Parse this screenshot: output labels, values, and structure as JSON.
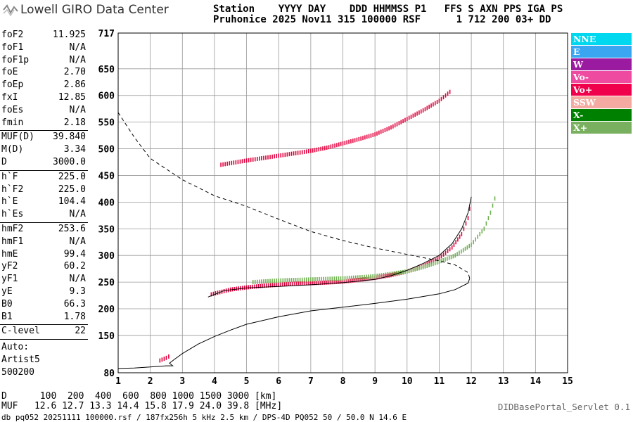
{
  "header": {
    "brand": "Lowell GIRO Data Center",
    "station_line1": "Station    YYYY DAY    DDD HHMMSS P1   FFS S AXN PPS IGA PS",
    "station_line2": "Pruhonice 2025 Nov11 315 100000 RSF      1 712 200 03+ DD"
  },
  "params": [
    {
      "name": "foF2",
      "value": "11.925"
    },
    {
      "name": "foF1",
      "value": "N/A"
    },
    {
      "name": "foF1p",
      "value": "N/A"
    },
    {
      "name": "foE",
      "value": "2.70"
    },
    {
      "name": "foEp",
      "value": "2.86"
    },
    {
      "name": "fxI",
      "value": "12.85"
    },
    {
      "name": "foEs",
      "value": "N/A"
    },
    {
      "name": "fmin",
      "value": "2.18"
    },
    {
      "name": "MUF(D)",
      "value": "39.840"
    },
    {
      "name": "M(D)",
      "value": "3.34"
    },
    {
      "name": "D",
      "value": "3000.0"
    },
    {
      "name": "h`F",
      "value": "225.0"
    },
    {
      "name": "h`F2",
      "value": "225.0"
    },
    {
      "name": "h`E",
      "value": "104.4"
    },
    {
      "name": "h`Es",
      "value": "N/A"
    },
    {
      "name": "hmF2",
      "value": "253.6"
    },
    {
      "name": "hmF1",
      "value": "N/A"
    },
    {
      "name": "hmE",
      "value": "99.4"
    },
    {
      "name": "yF2",
      "value": "60.2"
    },
    {
      "name": "yF1",
      "value": "N/A"
    },
    {
      "name": "yE",
      "value": "9.3"
    },
    {
      "name": "B0",
      "value": "66.3"
    },
    {
      "name": "B1",
      "value": "1.78"
    },
    {
      "name": "C-level",
      "value": "22"
    }
  ],
  "auto": {
    "line1": "Auto:",
    "line2": "Artist5",
    "line3": "500200"
  },
  "legend": [
    {
      "label": "NNE",
      "color": "#00d8f0"
    },
    {
      "label": "E",
      "color": "#3aa6f2"
    },
    {
      "label": "W",
      "color": "#9a1aa0"
    },
    {
      "label": "Vo-",
      "color": "#ee4aa0"
    },
    {
      "label": "Vo+",
      "color": "#f0004c"
    },
    {
      "label": "SSW",
      "color": "#f4aaa0"
    },
    {
      "label": "X-",
      "color": "#008000"
    },
    {
      "label": "X+",
      "color": "#78b060"
    }
  ],
  "bottom": {
    "d_line": "D      100  200  400  600  800 1000 1500 3000 [km]",
    "muf_line": "MUF   12.6 12.7 13.3 14.4 15.8 17.9 24.0 39.8 [MHz]"
  },
  "footer": "db pq052 20251111 100000.rsf / 187fx256h 5 kHz 2.5 km / DPS-4D PQ052 50 / 50.0 N 14.6 E",
  "servlet": "DIDBasePortal_Servlet 0.1",
  "chart_data": {
    "type": "scatter",
    "xlim": [
      1,
      15
    ],
    "ylim": [
      80,
      717
    ],
    "x_ticks": [
      1,
      2,
      3,
      4,
      5,
      6,
      7,
      8,
      9,
      10,
      11,
      12,
      13,
      14,
      15
    ],
    "y_ticks": [
      80,
      150,
      200,
      250,
      300,
      350,
      400,
      450,
      500,
      550,
      600,
      650,
      717
    ],
    "grid": true,
    "series": [
      {
        "name": "O-trace (Vo+)",
        "color": "#e0003c",
        "points": [
          [
            3.9,
            227
          ],
          [
            4.5,
            236
          ],
          [
            5,
            240
          ],
          [
            5.5,
            243
          ],
          [
            6,
            245
          ],
          [
            6.5,
            247
          ],
          [
            7,
            248
          ],
          [
            7.5,
            249
          ],
          [
            8,
            251
          ],
          [
            8.5,
            254
          ],
          [
            9,
            258
          ],
          [
            9.5,
            263
          ],
          [
            10,
            270
          ],
          [
            10.5,
            280
          ],
          [
            11,
            295
          ],
          [
            11.4,
            315
          ],
          [
            11.7,
            340
          ],
          [
            11.9,
            370
          ],
          [
            12,
            405
          ]
        ]
      },
      {
        "name": "X-trace (X+)",
        "color": "#70b050",
        "points": [
          [
            5.2,
            250
          ],
          [
            6,
            253
          ],
          [
            7,
            255
          ],
          [
            8,
            257
          ],
          [
            9,
            261
          ],
          [
            10,
            270
          ],
          [
            10.5,
            278
          ],
          [
            11,
            288
          ],
          [
            11.5,
            300
          ],
          [
            12,
            320
          ],
          [
            12.4,
            350
          ],
          [
            12.6,
            380
          ],
          [
            12.8,
            420
          ]
        ]
      },
      {
        "name": "Es/multihop (Vo+)",
        "color": "#e0003c",
        "points": [
          [
            4.2,
            470
          ],
          [
            5,
            478
          ],
          [
            6,
            487
          ],
          [
            7,
            496
          ],
          [
            7.5,
            502
          ],
          [
            8,
            510
          ],
          [
            8.5,
            518
          ],
          [
            9,
            527
          ],
          [
            9.5,
            540
          ],
          [
            10,
            556
          ],
          [
            10.5,
            572
          ],
          [
            11,
            590
          ],
          [
            11.4,
            610
          ]
        ]
      },
      {
        "name": "Low trace (Vo+)",
        "color": "#e0003c",
        "points": [
          [
            2.3,
            103
          ],
          [
            2.5,
            108
          ],
          [
            2.65,
            113
          ]
        ]
      }
    ],
    "model_curves": [
      {
        "name": "O-trace fit",
        "style": "solid",
        "points": [
          [
            3.8,
            222
          ],
          [
            4.3,
            234
          ],
          [
            5,
            239
          ],
          [
            6,
            242
          ],
          [
            7,
            245
          ],
          [
            8,
            249
          ],
          [
            9,
            255
          ],
          [
            9.5,
            262
          ],
          [
            10,
            272
          ],
          [
            10.5,
            285
          ],
          [
            11,
            300
          ],
          [
            11.4,
            322
          ],
          [
            11.7,
            350
          ],
          [
            11.9,
            380
          ],
          [
            12,
            410
          ]
        ]
      },
      {
        "name": "Profile",
        "style": "solid",
        "points": [
          [
            1,
            88
          ],
          [
            1.5,
            89
          ],
          [
            2,
            91
          ],
          [
            2.5,
            93
          ],
          [
            2.7,
            93
          ],
          [
            2.6,
            98
          ],
          [
            2.75,
            105
          ],
          [
            3,
            116
          ],
          [
            3.5,
            134
          ],
          [
            4,
            148
          ],
          [
            4.5,
            160
          ],
          [
            5,
            171
          ],
          [
            6,
            185
          ],
          [
            7,
            196
          ],
          [
            8,
            203
          ],
          [
            9,
            210
          ],
          [
            10,
            218
          ],
          [
            11,
            228
          ],
          [
            11.5,
            236
          ],
          [
            11.9,
            248
          ],
          [
            11.95,
            257
          ]
        ]
      },
      {
        "name": "Electron density profile",
        "style": "dashed",
        "points": [
          [
            1,
            568
          ],
          [
            1.5,
            522
          ],
          [
            2,
            482
          ],
          [
            3,
            442
          ],
          [
            4,
            412
          ],
          [
            5,
            392
          ],
          [
            6,
            368
          ],
          [
            7,
            345
          ],
          [
            8,
            328
          ],
          [
            9,
            314
          ],
          [
            10,
            302
          ],
          [
            11,
            290
          ],
          [
            11.5,
            282
          ],
          [
            11.9,
            268
          ],
          [
            11.95,
            257
          ]
        ]
      }
    ]
  }
}
